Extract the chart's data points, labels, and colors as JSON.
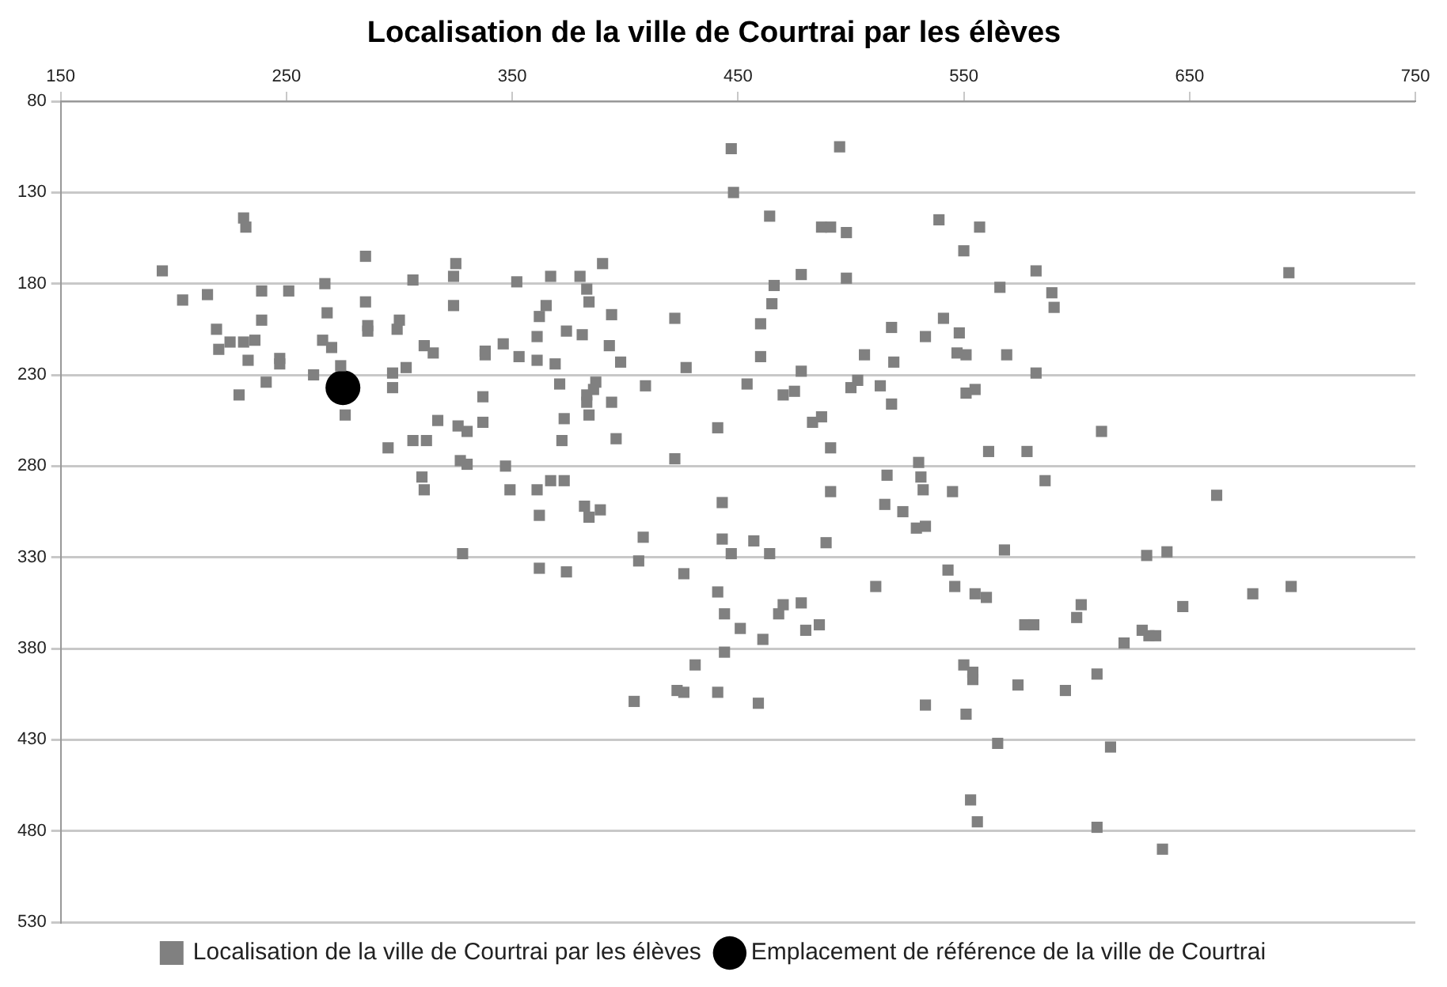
{
  "chart_data": {
    "type": "scatter",
    "title": "Localisation de la ville de Courtrai par les élèves",
    "xlim": [
      150,
      750
    ],
    "xticks": [
      150,
      250,
      350,
      450,
      550,
      650,
      750
    ],
    "ylim": [
      530,
      80
    ],
    "yticks": [
      80,
      130,
      180,
      230,
      280,
      330,
      380,
      430,
      480,
      530
    ],
    "grid": "y",
    "legend": "bottom",
    "series": [
      {
        "name": "Localisation de la ville de Courtrai par les élèves",
        "color": "#808080",
        "marker": "square",
        "x": [
          231,
          232,
          195,
          204,
          215,
          239,
          251,
          267,
          285,
          306,
          325,
          324,
          352,
          285,
          268,
          239,
          324,
          219,
          220,
          225,
          231,
          236,
          233,
          247,
          247,
          266,
          270,
          286,
          286,
          300,
          299,
          311,
          315,
          338,
          338,
          346,
          353,
          274,
          262,
          297,
          297,
          303,
          241,
          229,
          276,
          337,
          317,
          337,
          326,
          330,
          295,
          306,
          312,
          327,
          330,
          347,
          310,
          311,
          349,
          447,
          495,
          448,
          464,
          487,
          491,
          498,
          539,
          550,
          390,
          367,
          380,
          383,
          384,
          365,
          362,
          361,
          374,
          381,
          394,
          393,
          398,
          361,
          369,
          422,
          427,
          478,
          498,
          466,
          465,
          460,
          460,
          518,
          533,
          541,
          548,
          547,
          551,
          506,
          519,
          478,
          371,
          387,
          386,
          383,
          383,
          384,
          394,
          409,
          454,
          470,
          475,
          503,
          500,
          513,
          518,
          551,
          373,
          372,
          396,
          441,
          483,
          487,
          491,
          422,
          530,
          531,
          532,
          516,
          545,
          491,
          361,
          367,
          373,
          382,
          389,
          443,
          515,
          523,
          362,
          384,
          408,
          406,
          362,
          374,
          426,
          443,
          447,
          457,
          464,
          489,
          529,
          533,
          441,
          444,
          451,
          461,
          470,
          468,
          478,
          480,
          486,
          511,
          543,
          546,
          444,
          431,
          404,
          423,
          426,
          441,
          459,
          533,
          551,
          568,
          555,
          560,
          602,
          600,
          631,
          640,
          647,
          678,
          695,
          577,
          581,
          621,
          629,
          632,
          635,
          550,
          554,
          554,
          574,
          595,
          609,
          565,
          615,
          553,
          556,
          609,
          638,
          557,
          582,
          694,
          566,
          589,
          590,
          569,
          582,
          555,
          611,
          561,
          578,
          586,
          662,
          328
        ],
        "values": [
          144,
          149,
          173,
          189,
          186,
          184,
          184,
          180,
          165,
          178,
          169,
          176,
          179,
          190,
          196,
          200,
          192,
          205,
          216,
          212,
          212,
          211,
          222,
          221,
          224,
          211,
          215,
          203,
          206,
          200,
          205,
          214,
          218,
          217,
          219,
          213,
          220,
          225,
          230,
          229,
          237,
          226,
          234,
          241,
          252,
          242,
          255,
          256,
          258,
          261,
          270,
          266,
          266,
          277,
          279,
          280,
          286,
          293,
          293,
          106,
          105,
          130,
          143,
          149,
          149,
          152,
          145,
          162,
          169,
          176,
          176,
          183,
          190,
          192,
          198,
          209,
          206,
          208,
          197,
          214,
          223,
          222,
          224,
          199,
          226,
          175,
          177,
          181,
          191,
          202,
          220,
          204,
          209,
          199,
          207,
          218,
          219,
          219,
          223,
          228,
          235,
          234,
          238,
          241,
          245,
          252,
          245,
          236,
          235,
          241,
          239,
          233,
          237,
          236,
          246,
          240,
          254,
          266,
          265,
          259,
          256,
          253,
          270,
          276,
          278,
          286,
          293,
          285,
          294,
          294,
          293,
          288,
          288,
          302,
          304,
          300,
          301,
          305,
          307,
          308,
          319,
          332,
          336,
          338,
          339,
          320,
          328,
          321,
          328,
          322,
          314,
          313,
          349,
          361,
          369,
          375,
          356,
          361,
          355,
          370,
          367,
          346,
          337,
          346,
          382,
          389,
          409,
          403,
          404,
          404,
          410,
          411,
          416,
          326,
          350,
          352,
          356,
          363,
          329,
          327,
          357,
          350,
          346,
          367,
          367,
          377,
          370,
          373,
          373,
          389,
          393,
          397,
          400,
          403,
          394,
          432,
          434,
          463,
          475,
          478,
          490,
          149,
          173,
          174,
          182,
          185,
          193,
          219,
          229,
          238,
          261,
          272,
          272,
          288,
          296,
          328
        ]
      },
      {
        "name": "Emplacement de référence de la ville de Courtrai",
        "color": "#000000",
        "marker": "circle",
        "x": [
          275
        ],
        "values": [
          237
        ]
      }
    ]
  }
}
